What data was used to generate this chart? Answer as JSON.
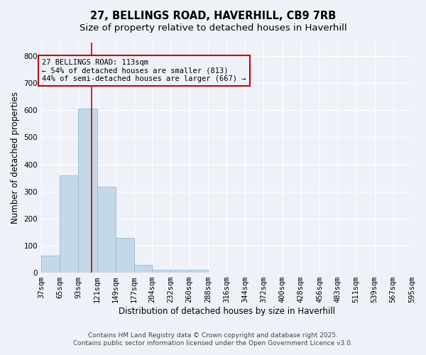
{
  "title": "27, BELLINGS ROAD, HAVERHILL, CB9 7RB",
  "subtitle": "Size of property relative to detached houses in Haverhill",
  "xlabel": "Distribution of detached houses by size in Haverhill",
  "ylabel": "Number of detached properties",
  "footer1": "Contains HM Land Registry data © Crown copyright and database right 2025.",
  "footer2": "Contains public sector information licensed under the Open Government Licence v3.0.",
  "annotation_line1": "27 BELLINGS ROAD: 113sqm",
  "annotation_line2": "← 54% of detached houses are smaller (813)",
  "annotation_line3": "44% of semi-detached houses are larger (667) →",
  "property_size": 113,
  "bin_edges": [
    37,
    65,
    93,
    121,
    149,
    177,
    204,
    232,
    260,
    288,
    316,
    344,
    372,
    400,
    428,
    456,
    483,
    511,
    539,
    567,
    595
  ],
  "bar_heights": [
    63,
    360,
    607,
    318,
    130,
    30,
    10,
    10,
    10,
    0,
    0,
    0,
    0,
    0,
    0,
    0,
    0,
    0,
    0,
    0
  ],
  "bar_color": "#c5d8ea",
  "bar_edgecolor": "#9ab8d0",
  "line_color": "#cc0000",
  "annotation_box_color": "#cc0000",
  "background_color": "#eef2f8",
  "grid_color": "#ffffff",
  "ylim": [
    0,
    850
  ],
  "yticks": [
    0,
    100,
    200,
    300,
    400,
    500,
    600,
    700,
    800
  ],
  "title_fontsize": 10.5,
  "subtitle_fontsize": 9.5,
  "xlabel_fontsize": 8.5,
  "ylabel_fontsize": 8.5,
  "tick_fontsize": 7.5,
  "annotation_fontsize": 7.5,
  "footer_fontsize": 6.5
}
